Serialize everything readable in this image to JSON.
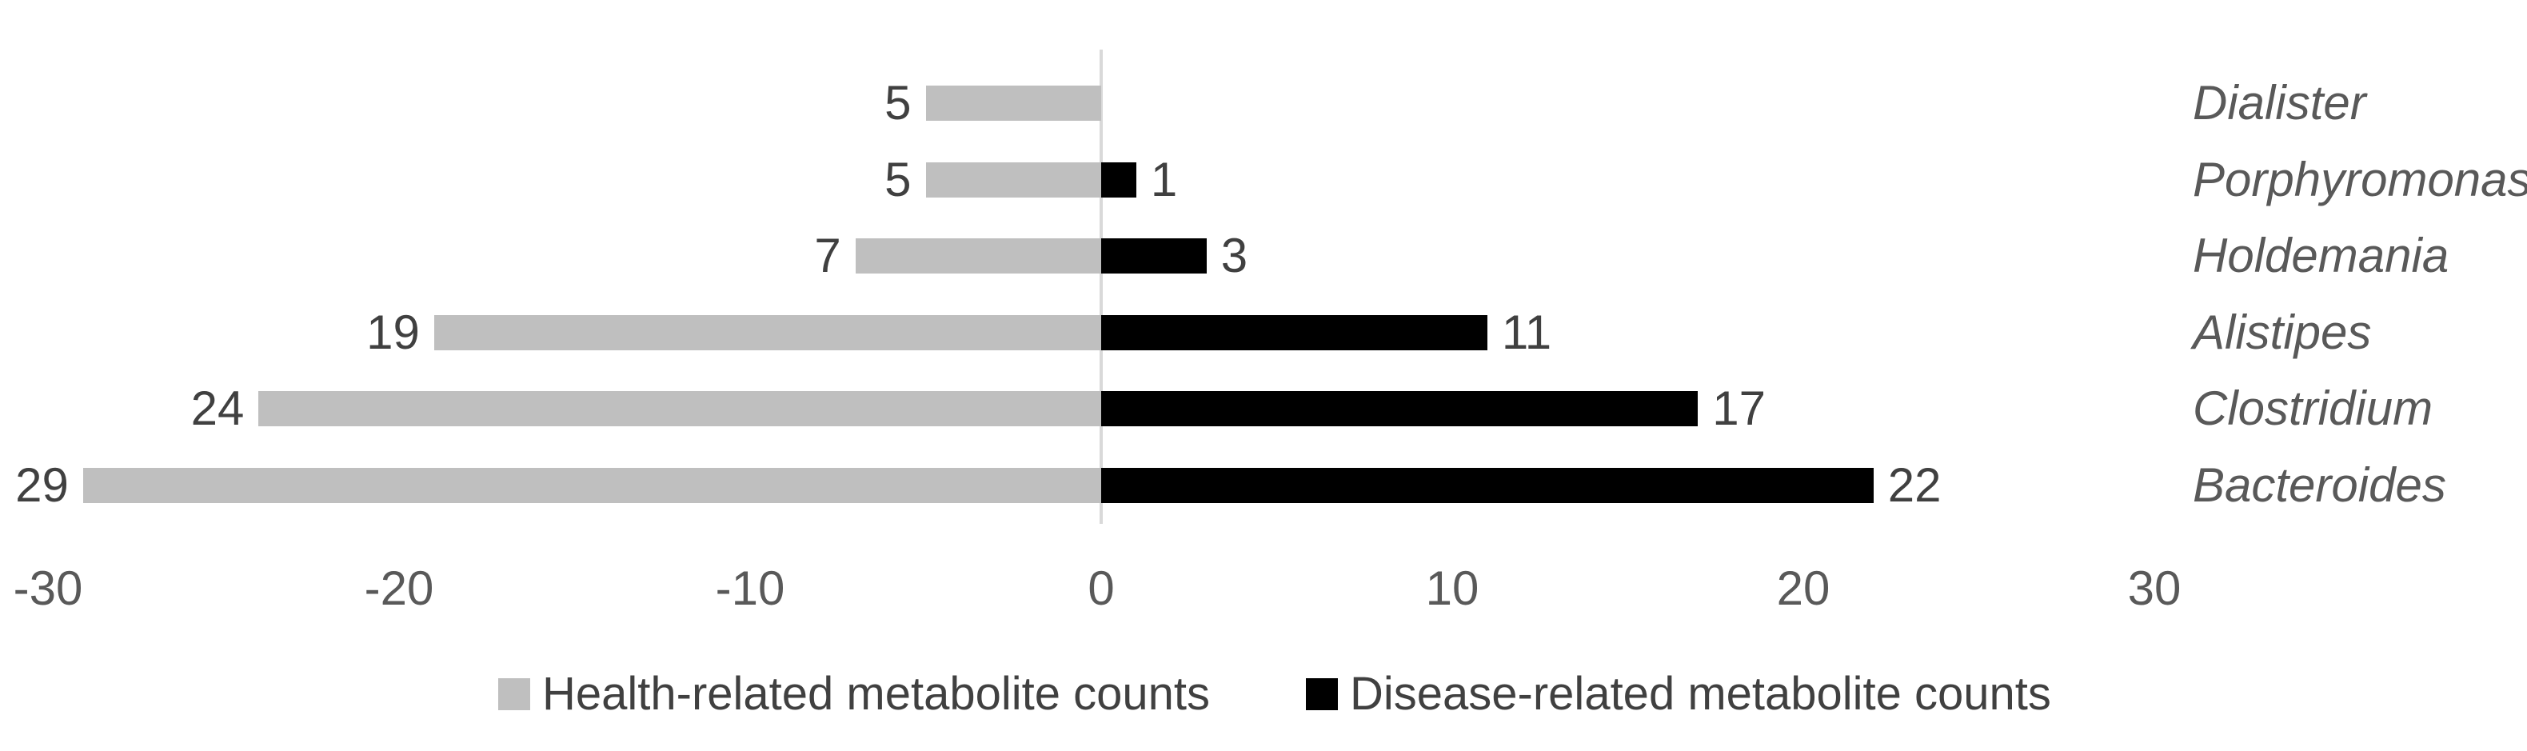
{
  "chart_data": {
    "type": "bar",
    "variant": "horizontal-diverging",
    "categories": [
      "Dialister",
      "Porphyromonas",
      "Holdemania",
      "Alistipes",
      "Clostridium",
      "Bacteroides"
    ],
    "series": [
      {
        "name": "Health-related metabolite counts",
        "side": "left",
        "color": "#bfbfbf",
        "values": [
          5,
          5,
          7,
          19,
          24,
          29
        ],
        "labels_shown": [
          "5",
          "5",
          "7",
          "19",
          "24",
          "29"
        ]
      },
      {
        "name": "Disease-related metabolite counts",
        "side": "right",
        "color": "#000000",
        "values": [
          0,
          1,
          3,
          11,
          17,
          22
        ],
        "labels_shown": [
          "",
          "1",
          "3",
          "11",
          "17",
          "22"
        ]
      }
    ],
    "x_ticks": [
      -30,
      -20,
      -10,
      0,
      10,
      20,
      30
    ],
    "xlim": [
      -30,
      30
    ],
    "title": "",
    "xlabel": "",
    "ylabel": "",
    "grid": "zero-line-only",
    "legend_position": "bottom",
    "category_label_position": "right",
    "category_label_style": "italic"
  },
  "legend": {
    "items": [
      {
        "label": "Health-related metabolite counts",
        "color": "#bfbfbf"
      },
      {
        "label": "Disease-related metabolite counts",
        "color": "#000000"
      }
    ]
  },
  "colors": {
    "health_bar": "#bfbfbf",
    "disease_bar": "#000000",
    "zero_line": "#d9d9d9",
    "value_text": "#404040",
    "axis_text": "#595959",
    "category_text": "#595959"
  }
}
